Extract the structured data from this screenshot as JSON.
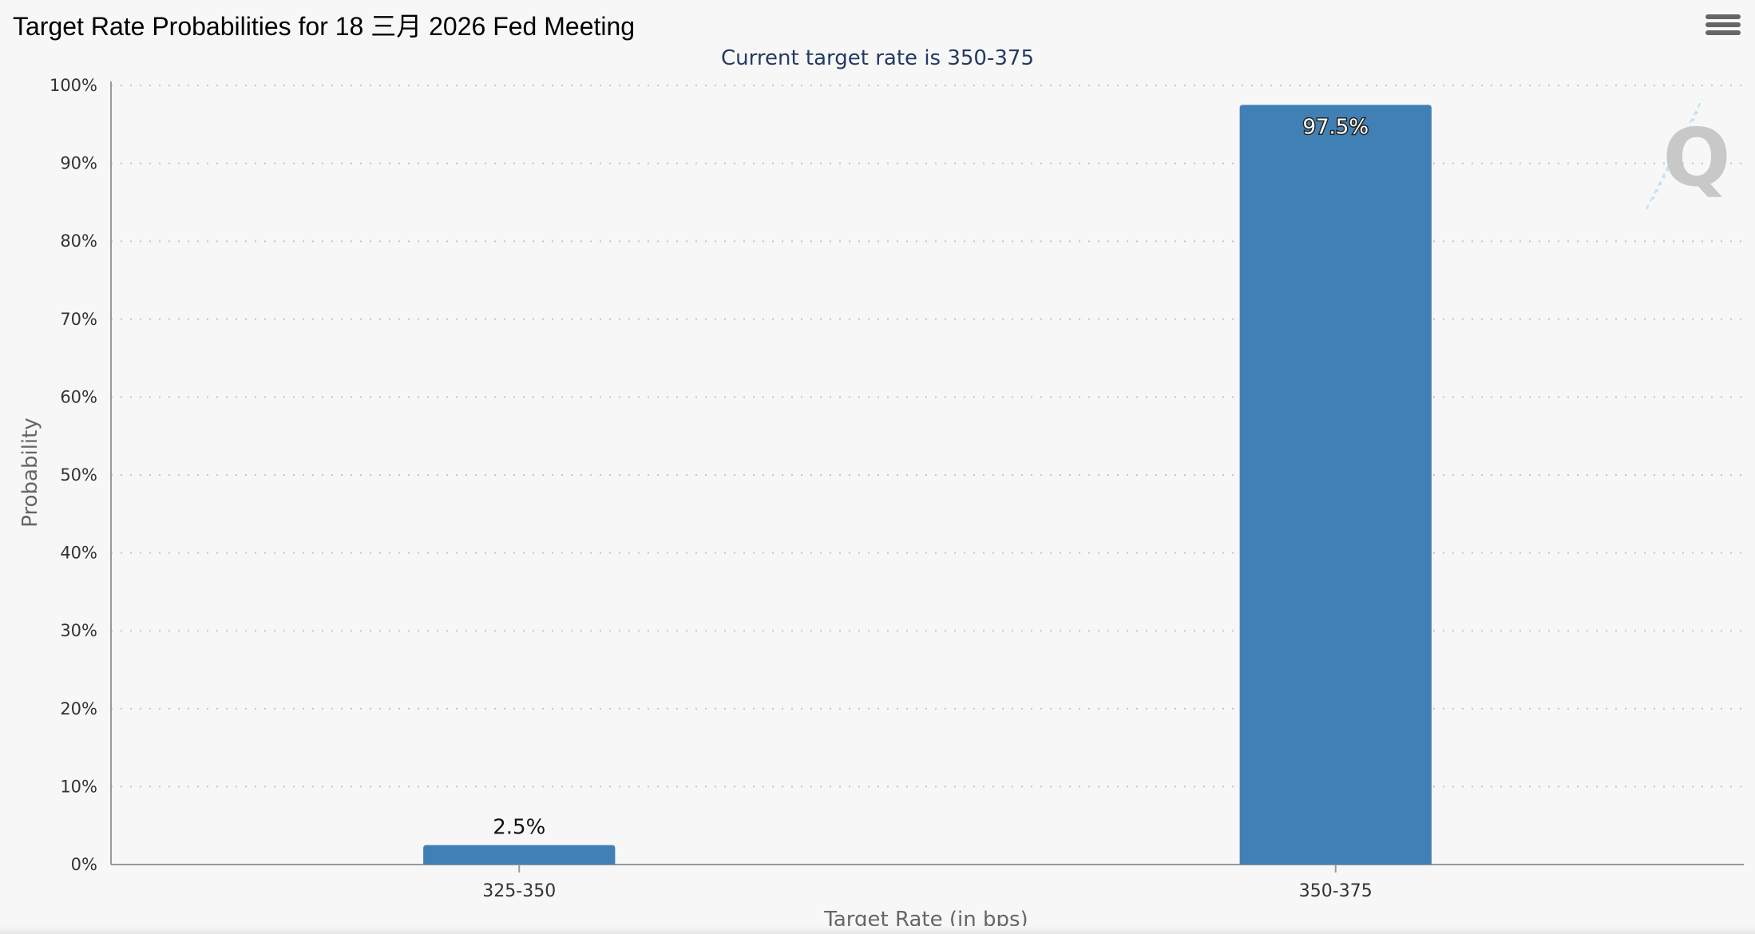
{
  "header": {
    "title": "Target Rate Probabilities for 18 三月 2026 Fed Meeting",
    "menu_icon": "hamburger-menu-icon"
  },
  "chart_data": {
    "type": "bar",
    "title": "Target Rate Probabilities for 18 三月 2026 Fed Meeting",
    "subtitle": "Current target rate is 350-375",
    "xlabel": "Target Rate (in bps)",
    "ylabel": "Probability",
    "categories": [
      "325-350",
      "350-375"
    ],
    "values": [
      2.5,
      97.5
    ],
    "data_labels": [
      "2.5%",
      "97.5%"
    ],
    "ylim": [
      0,
      100
    ],
    "yticks": [
      0,
      10,
      20,
      30,
      40,
      50,
      60,
      70,
      80,
      90,
      100
    ],
    "ytick_labels": [
      "0%",
      "10%",
      "20%",
      "30%",
      "40%",
      "50%",
      "60%",
      "70%",
      "80%",
      "90%",
      "100%"
    ],
    "grid": true,
    "bar_color": "#4180b5",
    "watermark": "Q"
  }
}
